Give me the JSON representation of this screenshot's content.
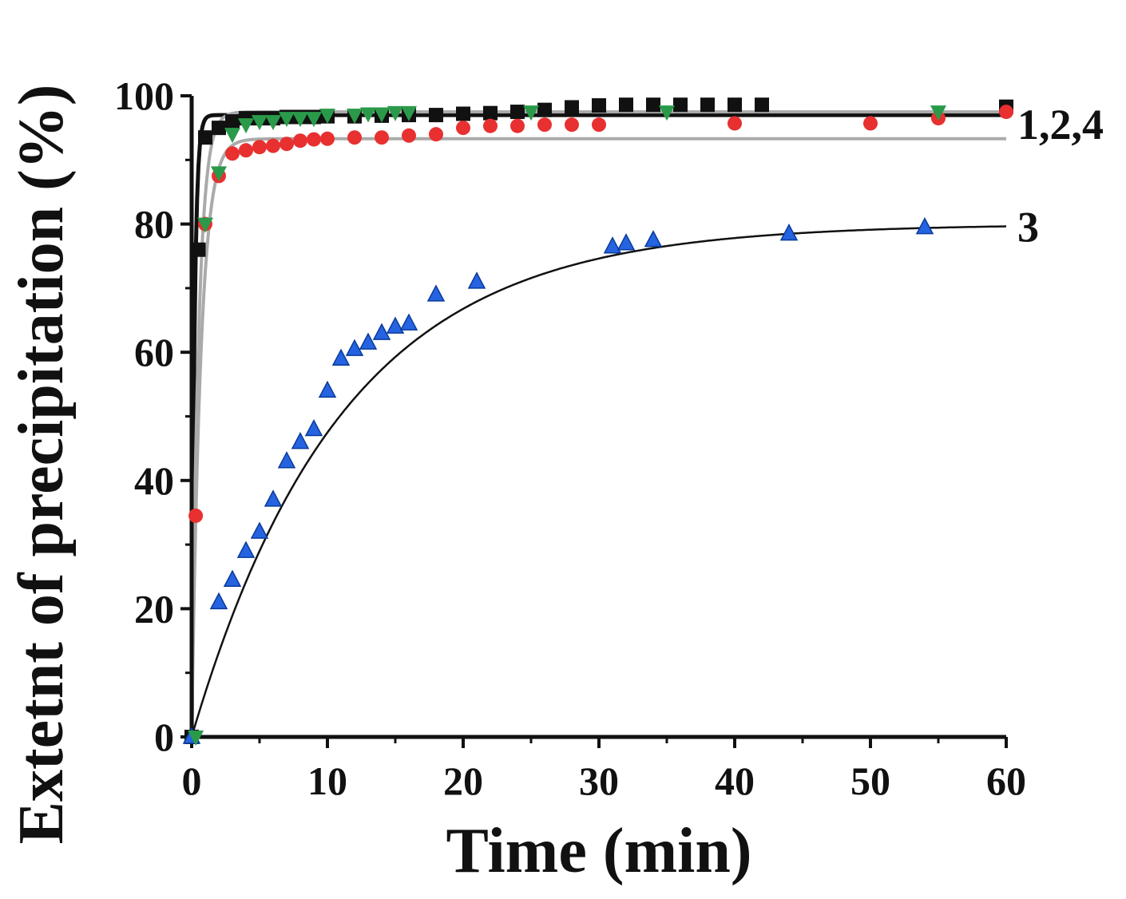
{
  "chart_data": {
    "type": "scatter",
    "xlabel": "Time (min)",
    "ylabel": "Extetnt of precipitation (%)",
    "xlim": [
      0,
      60
    ],
    "ylim": [
      0,
      100
    ],
    "xticks": [
      0,
      10,
      20,
      30,
      40,
      50,
      60
    ],
    "yticks": [
      0,
      20,
      40,
      60,
      80,
      100
    ],
    "grid": false,
    "series": [
      {
        "marker": "square",
        "color": "#111111",
        "points": [
          [
            0,
            0
          ],
          [
            0.5,
            76
          ],
          [
            1,
            93.5
          ],
          [
            2,
            95
          ],
          [
            3,
            96
          ],
          [
            4,
            96.5
          ],
          [
            5,
            96.5
          ],
          [
            6,
            96.5
          ],
          [
            7,
            96.7
          ],
          [
            8,
            96.7
          ],
          [
            9,
            96.7
          ],
          [
            10,
            96.8
          ],
          [
            12,
            96.8
          ],
          [
            14,
            96.9
          ],
          [
            16,
            97
          ],
          [
            18,
            97
          ],
          [
            20,
            97.2
          ],
          [
            22,
            97.3
          ],
          [
            24,
            97.5
          ],
          [
            26,
            97.8
          ],
          [
            28,
            98.2
          ],
          [
            30,
            98.5
          ],
          [
            32,
            98.6
          ],
          [
            34,
            98.6
          ],
          [
            36,
            98.6
          ],
          [
            38,
            98.6
          ],
          [
            40,
            98.6
          ],
          [
            42,
            98.6
          ],
          [
            60,
            98.3
          ]
        ]
      },
      {
        "marker": "circle",
        "color": "#e83030",
        "points": [
          [
            0.3,
            34.5
          ],
          [
            1,
            80
          ],
          [
            2,
            87.5
          ],
          [
            3,
            91
          ],
          [
            4,
            91.5
          ],
          [
            5,
            92
          ],
          [
            6,
            92.2
          ],
          [
            7,
            92.5
          ],
          [
            8,
            93
          ],
          [
            9,
            93.2
          ],
          [
            10,
            93.3
          ],
          [
            12,
            93.5
          ],
          [
            14,
            93.5
          ],
          [
            16,
            93.8
          ],
          [
            18,
            94
          ],
          [
            20,
            95
          ],
          [
            22,
            95.3
          ],
          [
            24,
            95.3
          ],
          [
            26,
            95.5
          ],
          [
            28,
            95.5
          ],
          [
            30,
            95.5
          ],
          [
            40,
            95.7
          ],
          [
            50,
            95.7
          ],
          [
            55,
            96.5
          ],
          [
            60,
            97.5
          ]
        ]
      },
      {
        "marker": "triangle-up",
        "color": "#2563e0",
        "points": [
          [
            0,
            0
          ],
          [
            2,
            21
          ],
          [
            3,
            24.5
          ],
          [
            4,
            29
          ],
          [
            5,
            32
          ],
          [
            6,
            37
          ],
          [
            7,
            43
          ],
          [
            8,
            46
          ],
          [
            9,
            48
          ],
          [
            10,
            54
          ],
          [
            11,
            59
          ],
          [
            12,
            60.5
          ],
          [
            13,
            61.5
          ],
          [
            14,
            63
          ],
          [
            15,
            64
          ],
          [
            16,
            64.5
          ],
          [
            18,
            69
          ],
          [
            21,
            71
          ],
          [
            31,
            76.5
          ],
          [
            32,
            77
          ],
          [
            34,
            77.5
          ],
          [
            44,
            78.5
          ],
          [
            54,
            79.5
          ]
        ]
      },
      {
        "marker": "triangle-down",
        "color": "#2a9a4a",
        "points": [
          [
            0.3,
            0
          ],
          [
            1,
            80
          ],
          [
            2,
            88
          ],
          [
            3,
            94
          ],
          [
            4,
            95.5
          ],
          [
            5,
            96
          ],
          [
            6,
            96
          ],
          [
            7,
            96.5
          ],
          [
            8,
            96.5
          ],
          [
            9,
            96.5
          ],
          [
            10,
            97
          ],
          [
            12,
            97
          ],
          [
            13,
            97.2
          ],
          [
            14,
            97.2
          ],
          [
            15,
            97.4
          ],
          [
            16,
            97.4
          ],
          [
            25,
            97.5
          ],
          [
            35,
            97.5
          ],
          [
            55,
            97.5
          ]
        ]
      }
    ],
    "fit_curves": [
      {
        "color": "#111111",
        "width": 5,
        "y_max": 97,
        "k": 5.0
      },
      {
        "color": "#aaaaaa",
        "width": 4,
        "y_max": 97.5,
        "k": 2.0
      },
      {
        "color": "#aaaaaa",
        "width": 4,
        "y_max": 93.3,
        "k": 1.5
      },
      {
        "color": "#111111",
        "width": 2.5,
        "y_max": 80,
        "k": 0.09
      }
    ],
    "curve_labels": [
      {
        "text": "1,2,4",
        "y": 96
      },
      {
        "text": "3",
        "y": 80
      }
    ]
  }
}
